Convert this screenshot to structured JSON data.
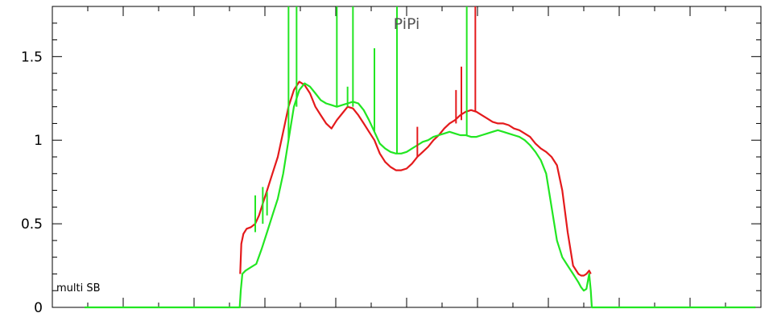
{
  "chart_data": {
    "type": "line",
    "title": "PiPi",
    "annotation": "multi SB",
    "xlabel": "",
    "ylabel": "",
    "xlim": [
      0,
      1320
    ],
    "ylim": [
      0,
      1.8
    ],
    "yticks": [
      {
        "value": 0,
        "label": "0"
      },
      {
        "value": 0.5,
        "label": "0.5"
      },
      {
        "value": 1,
        "label": "1"
      },
      {
        "value": 1.5,
        "label": "1.5"
      }
    ],
    "grid": false,
    "colors": {
      "red": "#e41a1c",
      "green": "#22e622"
    },
    "series": [
      {
        "color": "#e41a1c",
        "x": [
          350,
          352,
          356,
          362,
          370,
          378,
          385,
          392,
          400,
          410,
          420,
          430,
          440,
          450,
          460,
          470,
          480,
          490,
          500,
          510,
          520,
          530,
          540,
          550,
          560,
          570,
          580,
          590,
          600,
          610,
          620,
          630,
          640,
          650,
          660,
          670,
          680,
          690,
          700,
          710,
          720,
          730,
          740,
          750,
          760,
          770,
          780,
          790,
          800,
          810,
          820,
          830,
          840,
          850,
          860,
          870,
          880,
          890,
          900,
          910,
          920,
          930,
          940,
          950,
          960,
          970,
          980,
          985,
          990,
          995,
          1000,
          1003
        ],
        "y": [
          0.2,
          0.38,
          0.44,
          0.47,
          0.48,
          0.5,
          0.55,
          0.62,
          0.7,
          0.8,
          0.9,
          1.05,
          1.2,
          1.3,
          1.35,
          1.33,
          1.28,
          1.2,
          1.15,
          1.1,
          1.07,
          1.12,
          1.16,
          1.2,
          1.19,
          1.15,
          1.1,
          1.05,
          1.0,
          0.92,
          0.87,
          0.84,
          0.82,
          0.82,
          0.83,
          0.86,
          0.9,
          0.93,
          0.96,
          1.0,
          1.03,
          1.07,
          1.1,
          1.12,
          1.15,
          1.17,
          1.18,
          1.17,
          1.15,
          1.13,
          1.11,
          1.1,
          1.1,
          1.09,
          1.07,
          1.06,
          1.04,
          1.02,
          0.98,
          0.95,
          0.93,
          0.9,
          0.85,
          0.7,
          0.45,
          0.25,
          0.2,
          0.19,
          0.19,
          0.2,
          0.22,
          0.2
        ]
      },
      {
        "color": "#22e622",
        "x": [
          60,
          349,
          351,
          354,
          360,
          370,
          380,
          390,
          400,
          410,
          420,
          430,
          440,
          450,
          460,
          470,
          480,
          490,
          500,
          510,
          520,
          530,
          540,
          550,
          560,
          570,
          580,
          590,
          600,
          610,
          620,
          630,
          640,
          650,
          660,
          670,
          680,
          690,
          700,
          710,
          720,
          730,
          740,
          750,
          760,
          770,
          780,
          790,
          800,
          810,
          820,
          830,
          840,
          850,
          860,
          870,
          880,
          890,
          900,
          910,
          920,
          930,
          940,
          950,
          960,
          970,
          980,
          985,
          990,
          995,
          1000,
          1003,
          1005,
          1310
        ],
        "y": [
          0,
          0,
          0.1,
          0.2,
          0.22,
          0.24,
          0.26,
          0.35,
          0.45,
          0.55,
          0.65,
          0.8,
          1.0,
          1.2,
          1.3,
          1.34,
          1.32,
          1.28,
          1.24,
          1.22,
          1.21,
          1.2,
          1.21,
          1.22,
          1.23,
          1.22,
          1.18,
          1.12,
          1.05,
          0.98,
          0.95,
          0.93,
          0.92,
          0.92,
          0.93,
          0.95,
          0.97,
          0.99,
          1.0,
          1.02,
          1.03,
          1.04,
          1.05,
          1.04,
          1.03,
          1.03,
          1.02,
          1.02,
          1.03,
          1.04,
          1.05,
          1.06,
          1.05,
          1.04,
          1.03,
          1.02,
          1.0,
          0.97,
          0.93,
          0.88,
          0.8,
          0.6,
          0.4,
          0.3,
          0.25,
          0.2,
          0.15,
          0.12,
          0.1,
          0.11,
          0.2,
          0.1,
          0,
          0
        ]
      }
    ],
    "spikes": [
      {
        "color": "#22e622",
        "x": 378,
        "y0": 0.45,
        "y1": 0.67
      },
      {
        "color": "#22e622",
        "x": 392,
        "y0": 0.5,
        "y1": 0.72
      },
      {
        "color": "#22e622",
        "x": 400,
        "y0": 0.55,
        "y1": 0.69
      },
      {
        "color": "#22e622",
        "x": 440,
        "y0": 1.0,
        "y1": 1.8
      },
      {
        "color": "#22e622",
        "x": 455,
        "y0": 1.2,
        "y1": 1.8
      },
      {
        "color": "#22e622",
        "x": 530,
        "y0": 1.2,
        "y1": 1.8
      },
      {
        "color": "#22e622",
        "x": 550,
        "y0": 1.2,
        "y1": 1.32
      },
      {
        "color": "#22e622",
        "x": 560,
        "y0": 1.2,
        "y1": 1.8
      },
      {
        "color": "#22e622",
        "x": 600,
        "y0": 1.05,
        "y1": 1.55
      },
      {
        "color": "#22e622",
        "x": 642,
        "y0": 0.92,
        "y1": 1.8
      },
      {
        "color": "#e41a1c",
        "x": 680,
        "y0": 0.9,
        "y1": 1.08
      },
      {
        "color": "#e41a1c",
        "x": 752,
        "y0": 1.1,
        "y1": 1.3
      },
      {
        "color": "#e41a1c",
        "x": 762,
        "y0": 1.12,
        "y1": 1.44
      },
      {
        "color": "#22e622",
        "x": 772,
        "y0": 1.03,
        "y1": 1.8
      },
      {
        "color": "#e41a1c",
        "x": 788,
        "y0": 1.17,
        "y1": 1.8
      }
    ]
  }
}
